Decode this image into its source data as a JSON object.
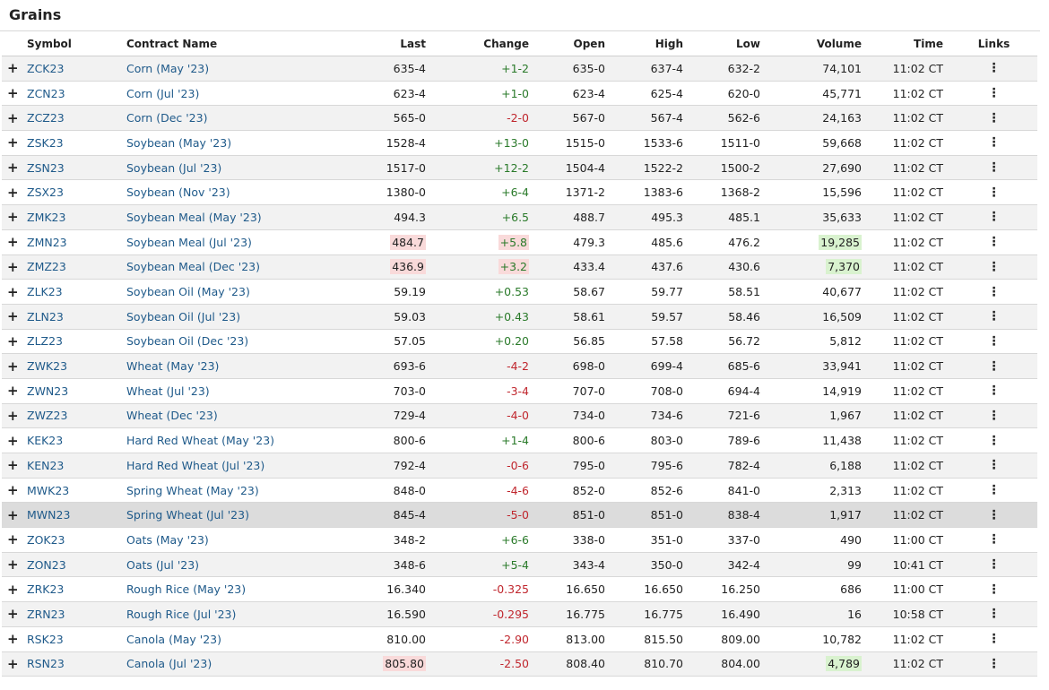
{
  "panel": {
    "title": "Grains"
  },
  "headers": {
    "symbol": "Symbol",
    "contract": "Contract Name",
    "last": "Last",
    "change": "Change",
    "open": "Open",
    "high": "High",
    "low": "Low",
    "volume": "Volume",
    "time": "Time",
    "links": "Links"
  },
  "icons": {
    "expand": "plus-icon",
    "links": "more-vert-icon"
  },
  "colors": {
    "positive": "#2a7a2a",
    "negative": "#c0262d",
    "link": "#1f5a8a",
    "flash_up": "#d9f2cf",
    "flash_down": "#f9dada"
  },
  "rows": [
    {
      "symbol": "ZCK23",
      "name": "Corn (May '23)",
      "last": "635-4",
      "change": "+1-2",
      "open": "635-0",
      "high": "637-4",
      "low": "632-2",
      "volume": "74,101",
      "time": "11:02 CT",
      "dir": "pos"
    },
    {
      "symbol": "ZCN23",
      "name": "Corn (Jul '23)",
      "last": "623-4",
      "change": "+1-0",
      "open": "623-4",
      "high": "625-4",
      "low": "620-0",
      "volume": "45,771",
      "time": "11:02 CT",
      "dir": "pos"
    },
    {
      "symbol": "ZCZ23",
      "name": "Corn (Dec '23)",
      "last": "565-0",
      "change": "-2-0",
      "open": "567-0",
      "high": "567-4",
      "low": "562-6",
      "volume": "24,163",
      "time": "11:02 CT",
      "dir": "neg"
    },
    {
      "symbol": "ZSK23",
      "name": "Soybean (May '23)",
      "last": "1528-4",
      "change": "+13-0",
      "open": "1515-0",
      "high": "1533-6",
      "low": "1511-0",
      "volume": "59,668",
      "time": "11:02 CT",
      "dir": "pos"
    },
    {
      "symbol": "ZSN23",
      "name": "Soybean (Jul '23)",
      "last": "1517-0",
      "change": "+12-2",
      "open": "1504-4",
      "high": "1522-2",
      "low": "1500-2",
      "volume": "27,690",
      "time": "11:02 CT",
      "dir": "pos"
    },
    {
      "symbol": "ZSX23",
      "name": "Soybean (Nov '23)",
      "last": "1380-0",
      "change": "+6-4",
      "open": "1371-2",
      "high": "1383-6",
      "low": "1368-2",
      "volume": "15,596",
      "time": "11:02 CT",
      "dir": "pos"
    },
    {
      "symbol": "ZMK23",
      "name": "Soybean Meal (May '23)",
      "last": "494.3",
      "change": "+6.5",
      "open": "488.7",
      "high": "495.3",
      "low": "485.1",
      "volume": "35,633",
      "time": "11:02 CT",
      "dir": "pos"
    },
    {
      "symbol": "ZMN23",
      "name": "Soybean Meal (Jul '23)",
      "last": "484.7",
      "change": "+5.8",
      "open": "479.3",
      "high": "485.6",
      "low": "476.2",
      "volume": "19,285",
      "time": "11:02 CT",
      "dir": "pos",
      "flash_last": "down",
      "flash_change": "down",
      "flash_volume": "up"
    },
    {
      "symbol": "ZMZ23",
      "name": "Soybean Meal (Dec '23)",
      "last": "436.9",
      "change": "+3.2",
      "open": "433.4",
      "high": "437.6",
      "low": "430.6",
      "volume": "7,370",
      "time": "11:02 CT",
      "dir": "pos",
      "flash_last": "down",
      "flash_change": "down",
      "flash_volume": "up"
    },
    {
      "symbol": "ZLK23",
      "name": "Soybean Oil (May '23)",
      "last": "59.19",
      "change": "+0.53",
      "open": "58.67",
      "high": "59.77",
      "low": "58.51",
      "volume": "40,677",
      "time": "11:02 CT",
      "dir": "pos"
    },
    {
      "symbol": "ZLN23",
      "name": "Soybean Oil (Jul '23)",
      "last": "59.03",
      "change": "+0.43",
      "open": "58.61",
      "high": "59.57",
      "low": "58.46",
      "volume": "16,509",
      "time": "11:02 CT",
      "dir": "pos"
    },
    {
      "symbol": "ZLZ23",
      "name": "Soybean Oil (Dec '23)",
      "last": "57.05",
      "change": "+0.20",
      "open": "56.85",
      "high": "57.58",
      "low": "56.72",
      "volume": "5,812",
      "time": "11:02 CT",
      "dir": "pos"
    },
    {
      "symbol": "ZWK23",
      "name": "Wheat (May '23)",
      "last": "693-6",
      "change": "-4-2",
      "open": "698-0",
      "high": "699-4",
      "low": "685-6",
      "volume": "33,941",
      "time": "11:02 CT",
      "dir": "neg"
    },
    {
      "symbol": "ZWN23",
      "name": "Wheat (Jul '23)",
      "last": "703-0",
      "change": "-3-4",
      "open": "707-0",
      "high": "708-0",
      "low": "694-4",
      "volume": "14,919",
      "time": "11:02 CT",
      "dir": "neg"
    },
    {
      "symbol": "ZWZ23",
      "name": "Wheat (Dec '23)",
      "last": "729-4",
      "change": "-4-0",
      "open": "734-0",
      "high": "734-6",
      "low": "721-6",
      "volume": "1,967",
      "time": "11:02 CT",
      "dir": "neg"
    },
    {
      "symbol": "KEK23",
      "name": "Hard Red Wheat (May '23)",
      "last": "800-6",
      "change": "+1-4",
      "open": "800-6",
      "high": "803-0",
      "low": "789-6",
      "volume": "11,438",
      "time": "11:02 CT",
      "dir": "pos"
    },
    {
      "symbol": "KEN23",
      "name": "Hard Red Wheat (Jul '23)",
      "last": "792-4",
      "change": "-0-6",
      "open": "795-0",
      "high": "795-6",
      "low": "782-4",
      "volume": "6,188",
      "time": "11:02 CT",
      "dir": "neg"
    },
    {
      "symbol": "MWK23",
      "name": "Spring Wheat (May '23)",
      "last": "848-0",
      "change": "-4-6",
      "open": "852-0",
      "high": "852-6",
      "low": "841-0",
      "volume": "2,313",
      "time": "11:02 CT",
      "dir": "neg"
    },
    {
      "symbol": "MWN23",
      "name": "Spring Wheat (Jul '23)",
      "last": "845-4",
      "change": "-5-0",
      "open": "851-0",
      "high": "851-0",
      "low": "838-4",
      "volume": "1,917",
      "time": "11:02 CT",
      "dir": "neg",
      "hover": true
    },
    {
      "symbol": "ZOK23",
      "name": "Oats (May '23)",
      "last": "348-2",
      "change": "+6-6",
      "open": "338-0",
      "high": "351-0",
      "low": "337-0",
      "volume": "490",
      "time": "11:00 CT",
      "dir": "pos"
    },
    {
      "symbol": "ZON23",
      "name": "Oats (Jul '23)",
      "last": "348-6",
      "change": "+5-4",
      "open": "343-4",
      "high": "350-0",
      "low": "342-4",
      "volume": "99",
      "time": "10:41 CT",
      "dir": "pos"
    },
    {
      "symbol": "ZRK23",
      "name": "Rough Rice (May '23)",
      "last": "16.340",
      "change": "-0.325",
      "open": "16.650",
      "high": "16.650",
      "low": "16.250",
      "volume": "686",
      "time": "11:00 CT",
      "dir": "neg"
    },
    {
      "symbol": "ZRN23",
      "name": "Rough Rice (Jul '23)",
      "last": "16.590",
      "change": "-0.295",
      "open": "16.775",
      "high": "16.775",
      "low": "16.490",
      "volume": "16",
      "time": "10:58 CT",
      "dir": "neg"
    },
    {
      "symbol": "RSK23",
      "name": "Canola (May '23)",
      "last": "810.00",
      "change": "-2.90",
      "open": "813.00",
      "high": "815.50",
      "low": "809.00",
      "volume": "10,782",
      "time": "11:02 CT",
      "dir": "neg"
    },
    {
      "symbol": "RSN23",
      "name": "Canola (Jul '23)",
      "last": "805.80",
      "change": "-2.50",
      "open": "808.40",
      "high": "810.70",
      "low": "804.00",
      "volume": "4,789",
      "time": "11:02 CT",
      "dir": "neg",
      "flash_last": "down",
      "flash_volume": "up"
    }
  ]
}
